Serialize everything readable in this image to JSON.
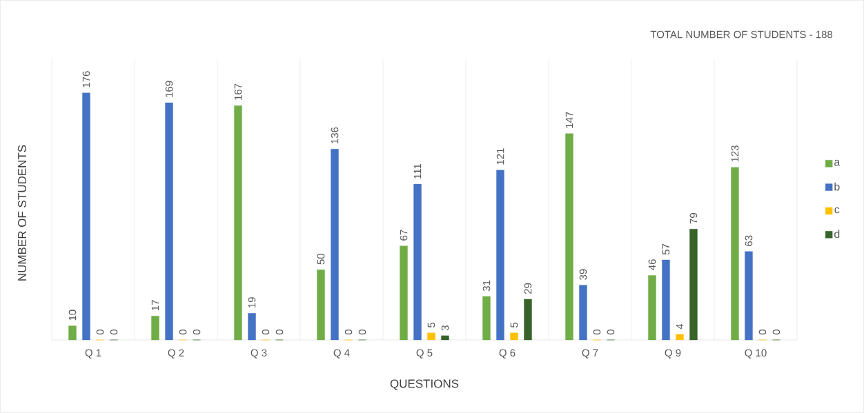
{
  "chart_data": {
    "type": "bar",
    "title": "TOTAL NUMBER OF STUDENTS - 188",
    "xlabel": "QUESTIONS",
    "ylabel": "NUMBER OF STUDENTS",
    "categories": [
      "Q 1",
      "Q 2",
      "Q 3",
      "Q 4",
      "Q 5",
      "Q 6",
      "Q 7",
      "Q 9",
      "Q 10"
    ],
    "series": [
      {
        "name": "a",
        "color": "#70ad47",
        "values": [
          10,
          17,
          167,
          50,
          67,
          31,
          147,
          46,
          123
        ]
      },
      {
        "name": "b",
        "color": "#4472c4",
        "values": [
          176,
          169,
          19,
          136,
          111,
          121,
          39,
          57,
          63
        ]
      },
      {
        "name": "c",
        "color": "#ffc000",
        "values": [
          0,
          0,
          0,
          0,
          5,
          5,
          0,
          4,
          0
        ]
      },
      {
        "name": "d",
        "color": "#38632a",
        "values": [
          0,
          0,
          0,
          0,
          3,
          29,
          0,
          79,
          0
        ]
      }
    ],
    "ylim": [
      0,
      200
    ],
    "data_labels": true,
    "grid": "x",
    "legend": "right",
    "tick_labels": "x"
  }
}
